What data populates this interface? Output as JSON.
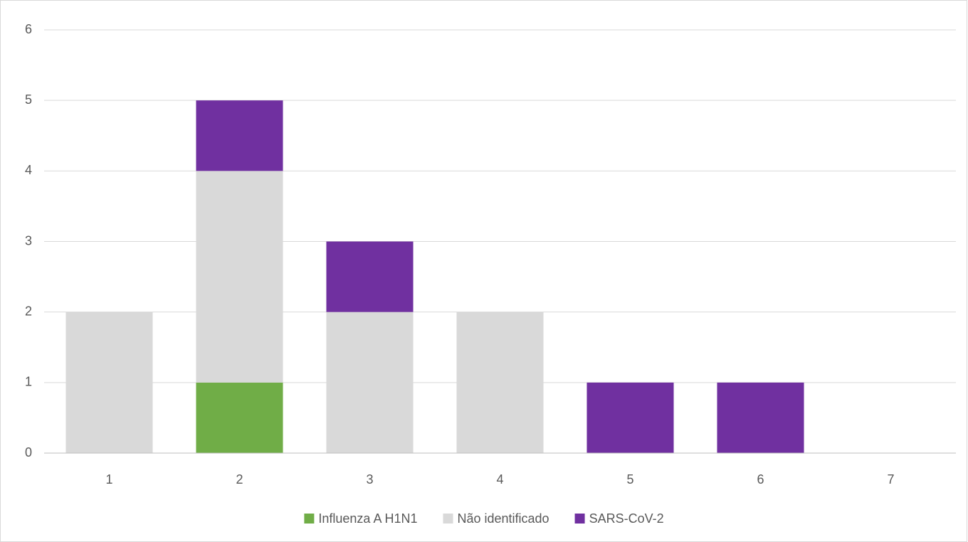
{
  "chart_data": {
    "type": "stacked_bar",
    "categories": [
      "1",
      "2",
      "3",
      "4",
      "5",
      "6",
      "7"
    ],
    "series": [
      {
        "name": "Influenza A H1N1",
        "color": "#70ad47",
        "values": [
          0,
          1,
          0,
          0,
          0,
          0,
          0
        ]
      },
      {
        "name": "Não identificado",
        "color": "#d9d9d9",
        "values": [
          2,
          3,
          2,
          2,
          0,
          0,
          0
        ]
      },
      {
        "name": "SARS-CoV-2",
        "color": "#7030a0",
        "values": [
          0,
          1,
          1,
          0,
          1,
          1,
          0
        ]
      }
    ],
    "ylim": [
      0,
      6
    ],
    "yticks": [
      0,
      1,
      2,
      3,
      4,
      5,
      6
    ],
    "grid": true,
    "legend": "bottom"
  }
}
